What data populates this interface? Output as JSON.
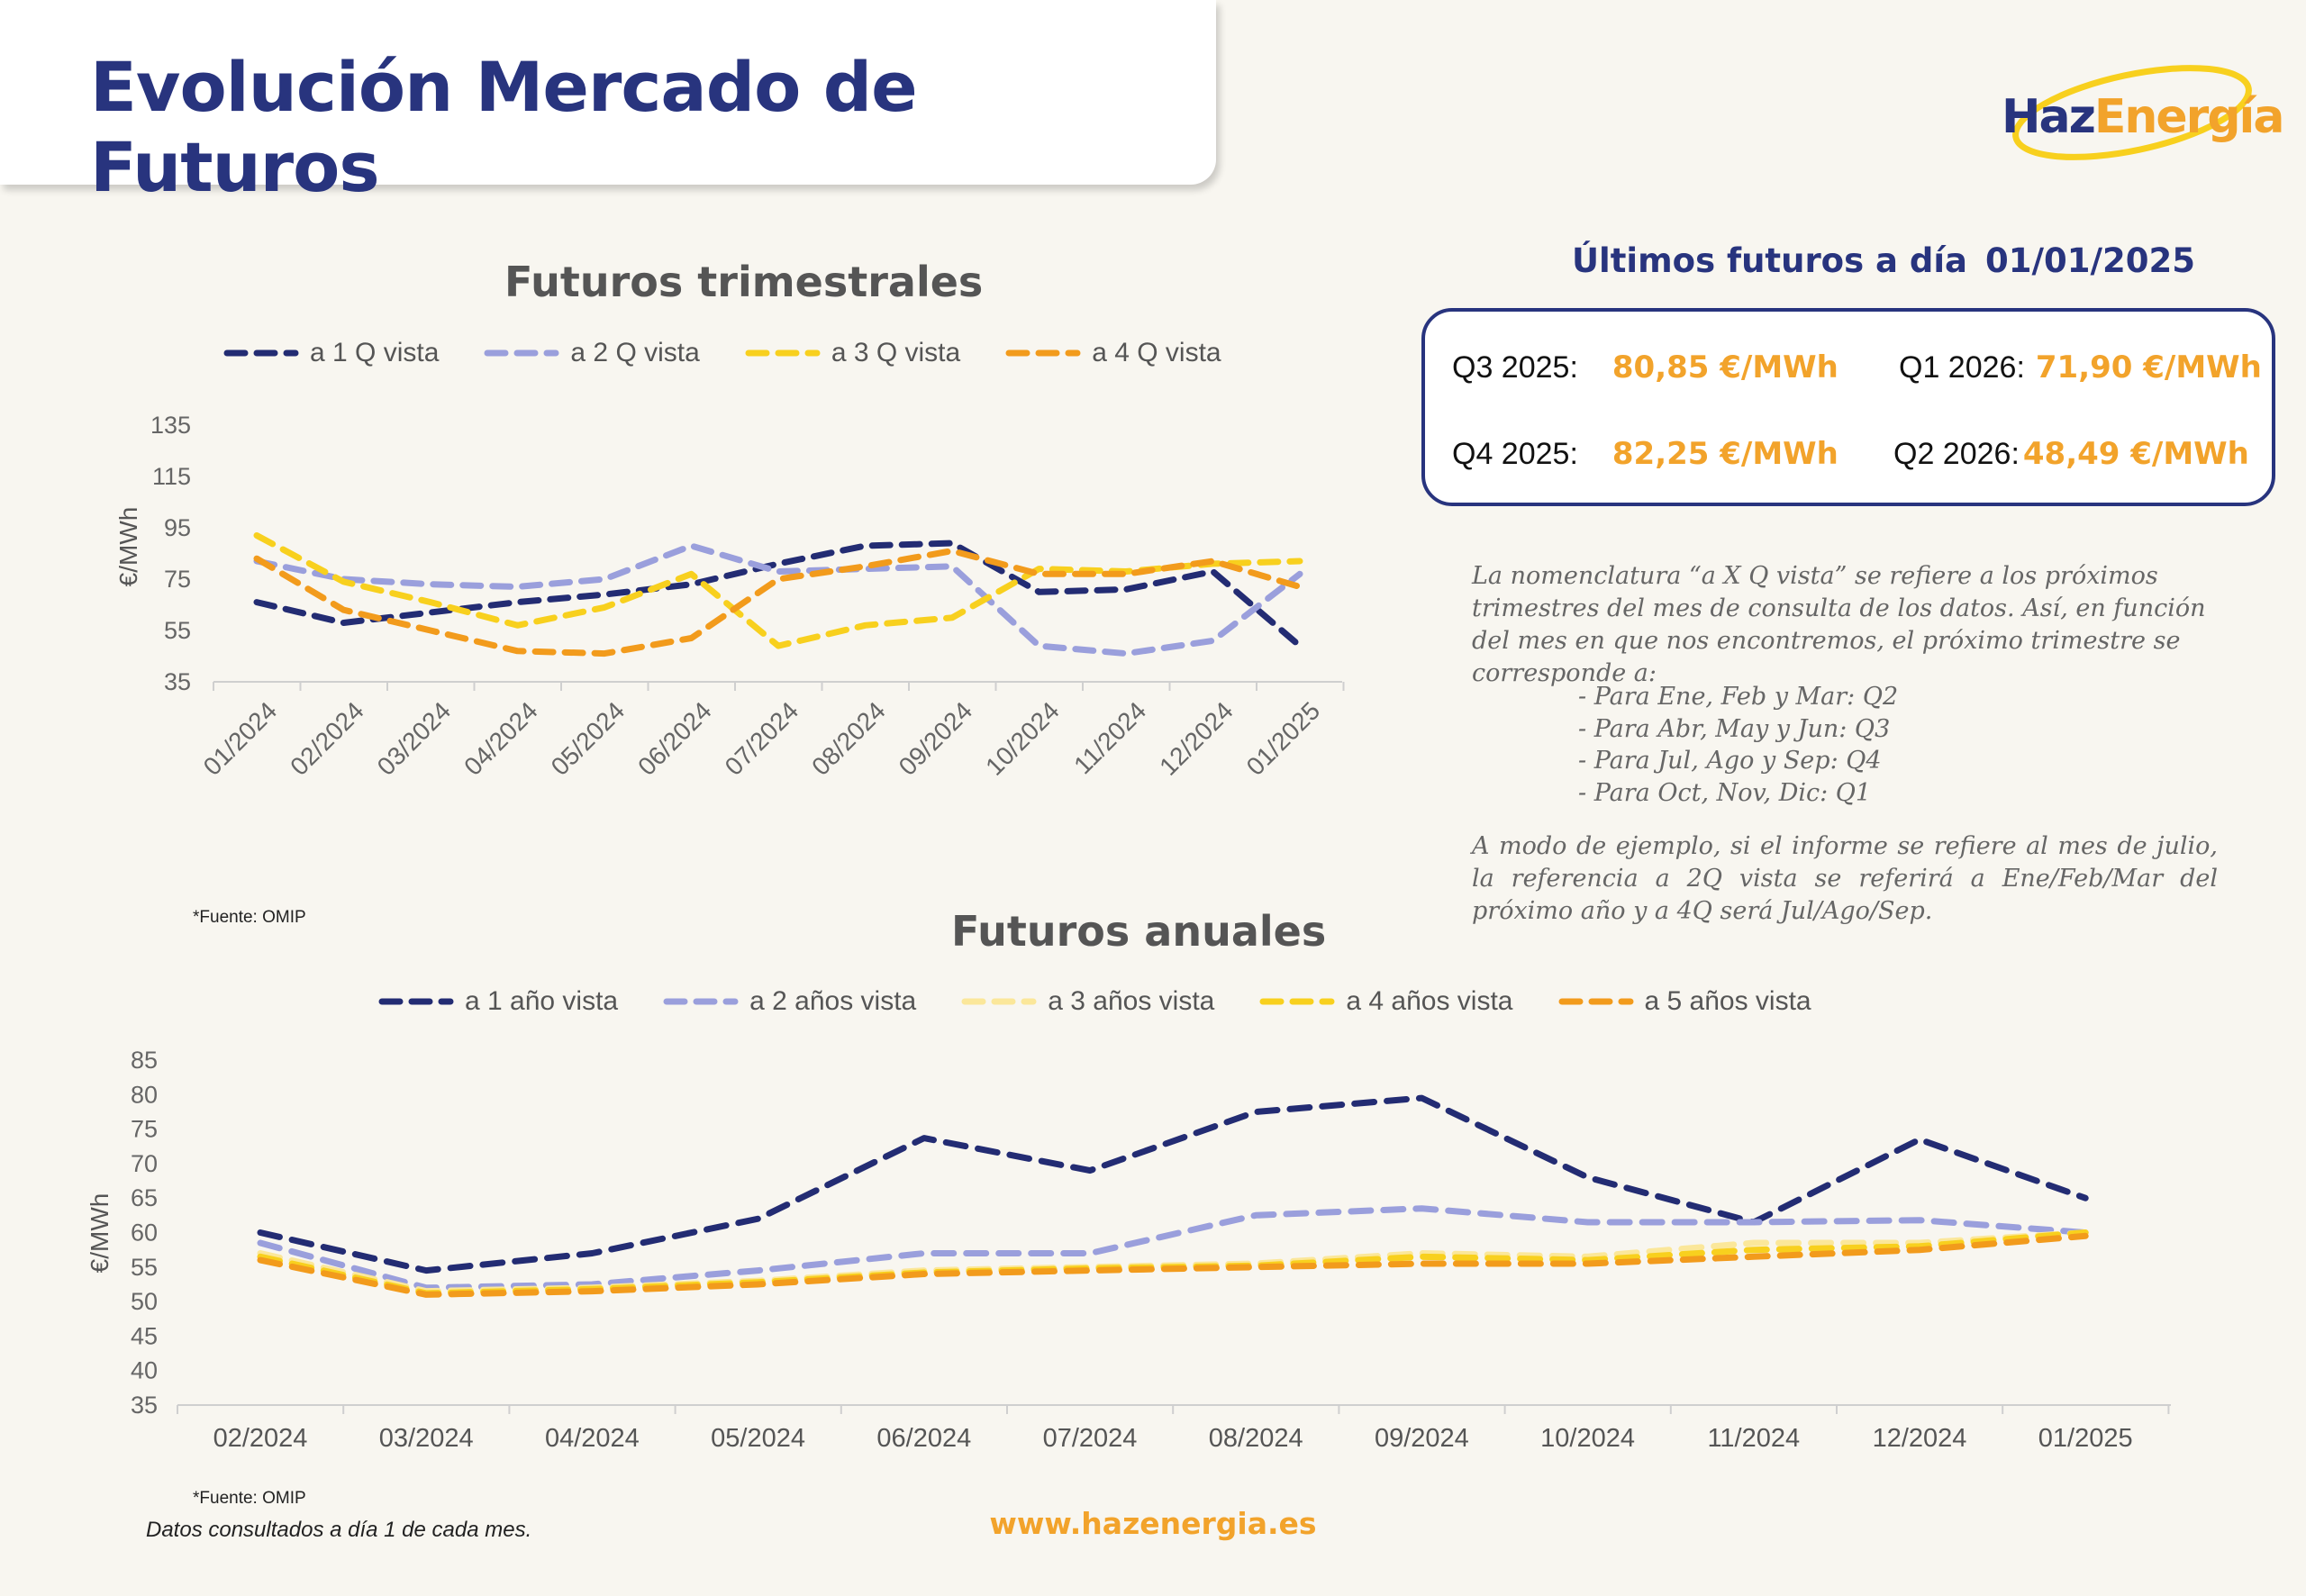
{
  "header": {
    "title": "Evolución Mercado de Futuros"
  },
  "logo": {
    "part1": "Haz",
    "part2": "Energía"
  },
  "colors": {
    "navy": "#28347e",
    "orange": "#f2a32b"
  },
  "chart_data": [
    {
      "type": "line",
      "title": "Futuros trimestrales",
      "xlabel": "",
      "ylabel": "€/MWh",
      "ylim": [
        35,
        135
      ],
      "yticks": [
        35,
        55,
        75,
        95,
        115,
        135
      ],
      "categories": [
        "01/2024",
        "02/2024",
        "03/2024",
        "04/2024",
        "05/2024",
        "06/2024",
        "07/2024",
        "08/2024",
        "09/2024",
        "10/2024",
        "11/2024",
        "12/2024",
        "01/2025"
      ],
      "legend_position": "top",
      "source": "*Fuente: OMIP",
      "series": [
        {
          "name": "a 1 Q vista",
          "color": "#232c73",
          "values": [
            66,
            58,
            62,
            66,
            69,
            73,
            81,
            88,
            89,
            70,
            71,
            78,
            49
          ]
        },
        {
          "name": "a 2 Q vista",
          "color": "#9a9fdc",
          "values": [
            82,
            75,
            73,
            72,
            75,
            88,
            78,
            79,
            80,
            49,
            46,
            51,
            77
          ]
        },
        {
          "name": "a 3 Q vista",
          "color": "#f8d01e",
          "values": [
            92,
            74,
            66,
            57,
            64,
            77,
            49,
            57,
            60,
            79,
            78,
            81,
            82
          ]
        },
        {
          "name": "a 4 Q vista",
          "color": "#f29b1c",
          "values": [
            83,
            63,
            55,
            47,
            46,
            52,
            75,
            80,
            86,
            77,
            77,
            82,
            72
          ]
        }
      ]
    },
    {
      "type": "line",
      "title": "Futuros anuales",
      "xlabel": "",
      "ylabel": "€/MWh",
      "ylim": [
        35,
        85
      ],
      "yticks": [
        35,
        40,
        45,
        50,
        55,
        60,
        65,
        70,
        75,
        80,
        85
      ],
      "categories": [
        "02/2024",
        "03/2024",
        "04/2024",
        "05/2024",
        "06/2024",
        "07/2024",
        "08/2024",
        "09/2024",
        "10/2024",
        "11/2024",
        "12/2024",
        "01/2025"
      ],
      "legend_position": "top",
      "source": "*Fuente: OMIP",
      "series": [
        {
          "name": "a 1 año vista",
          "color": "#232c73",
          "values": [
            60,
            54.5,
            57,
            62,
            73.7,
            69,
            77.5,
            79.5,
            68,
            61.5,
            73.5,
            65
          ]
        },
        {
          "name": "a 2 años vista",
          "color": "#9a9fdc",
          "values": [
            58.5,
            52,
            52.5,
            54.5,
            57,
            57,
            62.5,
            63.5,
            61.5,
            61.5,
            61.8,
            60
          ]
        },
        {
          "name": "a 3 años vista",
          "color": "#fbe79a",
          "values": [
            57,
            51.5,
            52,
            53,
            54.5,
            55,
            55.5,
            57,
            56.5,
            58.5,
            58.5,
            60
          ]
        },
        {
          "name": "a 4 años vista",
          "color": "#f8d01e",
          "values": [
            56.5,
            51.2,
            51.8,
            52.8,
            54.2,
            54.8,
            55.2,
            56.5,
            56,
            57.5,
            58,
            60
          ]
        },
        {
          "name": "a 5 años vista",
          "color": "#f29b1c",
          "values": [
            56,
            51,
            51.5,
            52.5,
            54,
            54.5,
            55,
            55.5,
            55.5,
            56.5,
            57.5,
            59.5
          ]
        }
      ]
    }
  ],
  "futures": {
    "header": "Últimos futuros a día",
    "date": "01/01/2025",
    "items": [
      {
        "label": "Q3 2025:",
        "value": "80,85 €/MWh"
      },
      {
        "label": "Q1 2026:",
        "value": "71,90 €/MWh"
      },
      {
        "label": "Q4 2025:",
        "value": "82,25 €/MWh"
      },
      {
        "label": "Q2 2026:",
        "value": "48,49 €/MWh"
      }
    ]
  },
  "notes": {
    "intro": "La nomenclatura “a X Q vista”  se refiere a los próximos trimestres del mes de consulta de los datos. Así, en función del mes en que nos encontremos, el próximo trimestre se corresponde a:",
    "list": [
      "- Para Ene, Feb y Mar: Q2",
      "- Para Abr, May y Jun: Q3",
      "- Para Jul, Ago y Sep: Q4",
      "- Para Oct, Nov, Dic: Q1"
    ],
    "example": "A modo de ejemplo, si el informe se refiere al mes de julio, la referencia a 2Q vista se referirá a Ene/Feb/Mar del próximo año y a 4Q será Jul/Ago/Sep."
  },
  "footer": {
    "url": "www.hazenergia.es",
    "note": "Datos consultados a día 1 de cada mes."
  }
}
